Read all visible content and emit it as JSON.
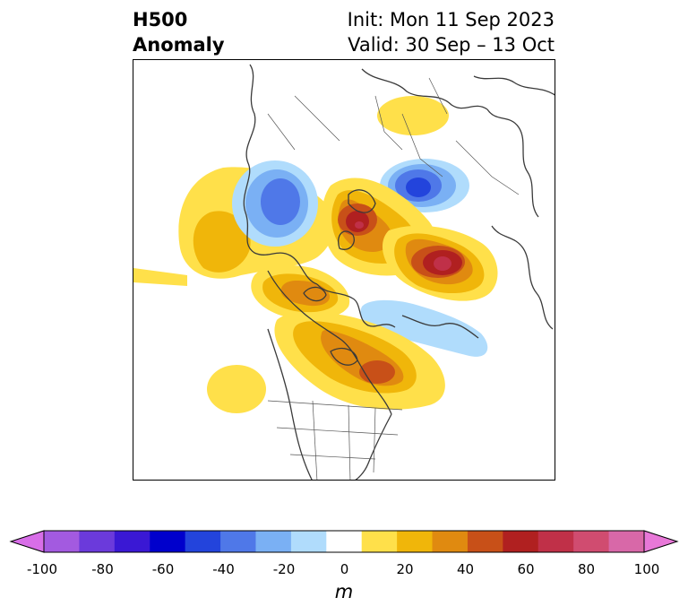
{
  "title": {
    "line1_left": "H500",
    "line2_left": "Anomaly",
    "line1_right": "Init: Mon 11 Sep 2023",
    "line2_right": "Valid: 30 Sep – 13 Oct"
  },
  "colorbar": {
    "unit": "m",
    "tick_labels": [
      "-100",
      "-80",
      "-60",
      "-40",
      "-20",
      "0",
      "20",
      "40",
      "60",
      "80",
      "100"
    ],
    "colors": [
      "#d86ee8",
      "#a35ae0",
      "#6b3adb",
      "#3a18d4",
      "#0000cc",
      "#2344dc",
      "#4f78e8",
      "#7ab0f4",
      "#b0dcfc",
      "#ffffff",
      "#ffe04a",
      "#f0b60a",
      "#e08a10",
      "#c85018",
      "#b02020",
      "#c03048",
      "#d04c70",
      "#d868a8",
      "#e878d8"
    ]
  },
  "map": {
    "anomalies": [
      {
        "name": "yellow-lobe-siberia",
        "sign": "positive"
      },
      {
        "name": "blue-trough-east-siberia",
        "sign": "negative"
      },
      {
        "name": "red-ridge-pole",
        "sign": "positive"
      },
      {
        "name": "blue-trough-north-europe",
        "sign": "negative"
      },
      {
        "name": "red-ridge-greenland-scandinavia",
        "sign": "positive"
      },
      {
        "name": "yellow-lobe-north-pacific",
        "sign": "positive"
      },
      {
        "name": "orange-ridge-alaska",
        "sign": "positive"
      },
      {
        "name": "blue-trough-north-atlantic",
        "sign": "negative"
      },
      {
        "name": "orange-ridge-eastern-canada",
        "sign": "positive"
      },
      {
        "name": "yellow-lobe-pacific-subtropics",
        "sign": "positive"
      }
    ]
  }
}
